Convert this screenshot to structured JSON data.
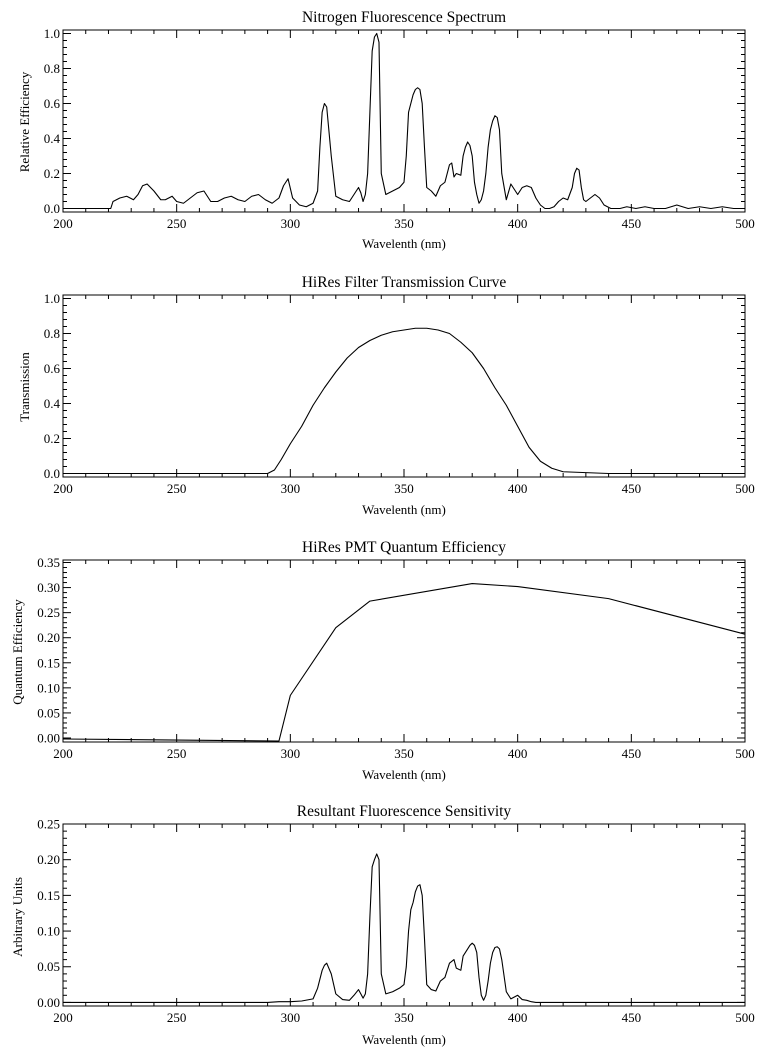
{
  "chart_data": [
    {
      "type": "line",
      "title": "Nitrogen Fluorescence Spectrum",
      "xlabel": "Wavelenth (nm)",
      "ylabel": "Relative Efficiency",
      "xlim": [
        200,
        500
      ],
      "ylim": [
        -0.02,
        1.02
      ],
      "xticks": [
        200,
        250,
        300,
        350,
        400,
        450,
        500
      ],
      "yticks": [
        0.0,
        0.2,
        0.4,
        0.6,
        0.8,
        1.0
      ],
      "ytick_labels": [
        "0.0",
        "0.2",
        "0.4",
        "0.6",
        "0.8",
        "1.0"
      ],
      "series": [
        {
          "x": [
            200,
            221,
            222,
            225,
            228,
            231,
            233,
            235,
            237,
            240,
            243,
            245,
            248,
            250,
            253,
            256,
            259,
            262,
            265,
            268,
            271,
            274,
            277,
            280,
            283,
            286,
            289,
            292,
            295,
            297,
            299,
            301,
            304,
            307,
            310,
            312,
            313,
            314,
            315,
            316,
            318,
            320,
            323,
            326,
            328,
            330,
            331,
            332,
            333,
            334,
            335,
            336,
            337,
            338,
            339,
            340,
            342,
            345,
            348,
            350,
            351,
            352,
            353,
            354,
            355,
            356,
            357,
            358,
            359,
            360,
            362,
            364,
            366,
            368,
            370,
            371,
            372,
            373,
            375,
            376,
            377,
            378,
            379,
            380,
            381,
            382,
            383,
            384,
            385,
            386,
            387,
            388,
            389,
            390,
            391,
            392,
            393,
            395,
            397,
            398,
            400,
            402,
            404,
            406,
            408,
            410,
            412,
            414,
            416,
            418,
            420,
            422,
            424,
            425,
            426,
            427,
            428,
            429,
            430,
            432,
            434,
            436,
            438,
            441,
            445,
            448,
            452,
            456,
            460,
            465,
            470,
            475,
            480,
            485,
            490,
            495,
            500
          ],
          "y": [
            0.0,
            0.0,
            0.04,
            0.06,
            0.07,
            0.05,
            0.08,
            0.13,
            0.14,
            0.1,
            0.05,
            0.05,
            0.07,
            0.04,
            0.03,
            0.06,
            0.09,
            0.1,
            0.04,
            0.04,
            0.06,
            0.07,
            0.05,
            0.04,
            0.07,
            0.08,
            0.05,
            0.03,
            0.06,
            0.13,
            0.17,
            0.06,
            0.02,
            0.01,
            0.03,
            0.1,
            0.35,
            0.55,
            0.6,
            0.58,
            0.3,
            0.07,
            0.05,
            0.04,
            0.08,
            0.12,
            0.09,
            0.04,
            0.08,
            0.2,
            0.55,
            0.9,
            0.98,
            1.0,
            0.95,
            0.2,
            0.08,
            0.1,
            0.12,
            0.15,
            0.3,
            0.55,
            0.6,
            0.65,
            0.68,
            0.69,
            0.68,
            0.6,
            0.35,
            0.12,
            0.1,
            0.07,
            0.13,
            0.15,
            0.25,
            0.26,
            0.18,
            0.2,
            0.19,
            0.3,
            0.35,
            0.38,
            0.36,
            0.3,
            0.15,
            0.08,
            0.03,
            0.05,
            0.1,
            0.2,
            0.35,
            0.45,
            0.5,
            0.53,
            0.52,
            0.45,
            0.2,
            0.05,
            0.14,
            0.12,
            0.08,
            0.12,
            0.13,
            0.12,
            0.06,
            0.02,
            0.0,
            0.0,
            0.01,
            0.04,
            0.06,
            0.05,
            0.12,
            0.2,
            0.23,
            0.22,
            0.12,
            0.05,
            0.04,
            0.06,
            0.08,
            0.06,
            0.02,
            0.0,
            0.0,
            0.01,
            0.0,
            0.01,
            0.0,
            0.0,
            0.02,
            0.0,
            0.01,
            0.0,
            0.01,
            0.0,
            0.0
          ]
        }
      ]
    },
    {
      "type": "line",
      "title": "HiRes Filter Transmission Curve",
      "xlabel": "Wavelenth (nm)",
      "ylabel": "Transmission",
      "xlim": [
        200,
        500
      ],
      "ylim": [
        -0.02,
        1.02
      ],
      "xticks": [
        200,
        250,
        300,
        350,
        400,
        450,
        500
      ],
      "yticks": [
        0.0,
        0.2,
        0.4,
        0.6,
        0.8,
        1.0
      ],
      "ytick_labels": [
        "0.0",
        "0.2",
        "0.4",
        "0.6",
        "0.8",
        "1.0"
      ],
      "series": [
        {
          "x": [
            200,
            250,
            290,
            293,
            296,
            300,
            305,
            310,
            315,
            320,
            325,
            330,
            335,
            340,
            345,
            350,
            355,
            360,
            365,
            370,
            375,
            380,
            385,
            390,
            393,
            395,
            400,
            405,
            410,
            415,
            420,
            430,
            440,
            450,
            500
          ],
          "y": [
            0.0,
            0.0,
            0.0,
            0.02,
            0.08,
            0.17,
            0.27,
            0.39,
            0.49,
            0.58,
            0.66,
            0.72,
            0.76,
            0.79,
            0.81,
            0.82,
            0.83,
            0.83,
            0.82,
            0.8,
            0.75,
            0.69,
            0.6,
            0.49,
            0.43,
            0.39,
            0.27,
            0.15,
            0.07,
            0.03,
            0.01,
            0.005,
            0.0,
            0.0,
            0.0
          ]
        }
      ]
    },
    {
      "type": "line",
      "title": "HiRes PMT Quantum Efficiency",
      "xlabel": "Wavelenth (nm)",
      "ylabel": "Quantum Efficiency",
      "xlim": [
        200,
        500
      ],
      "ylim": [
        -0.008,
        0.355
      ],
      "xticks": [
        200,
        250,
        300,
        350,
        400,
        450,
        500
      ],
      "yticks": [
        0.0,
        0.05,
        0.1,
        0.15,
        0.2,
        0.25,
        0.3,
        0.35
      ],
      "ytick_labels": [
        "0.00",
        "0.05",
        "0.10",
        "0.15",
        "0.20",
        "0.25",
        "0.30",
        "0.35"
      ],
      "series": [
        {
          "x": [
            200,
            295,
            300,
            320,
            335,
            380,
            400,
            440,
            500
          ],
          "y": [
            -0.002,
            -0.006,
            0.085,
            0.22,
            0.273,
            0.308,
            0.302,
            0.278,
            0.207
          ]
        }
      ]
    },
    {
      "type": "line",
      "title": "Resultant Fluorescence Sensitivity",
      "xlabel": "Wavelenth (nm)",
      "ylabel": "Arbitrary Units",
      "xlim": [
        200,
        500
      ],
      "ylim": [
        -0.005,
        0.25
      ],
      "xticks": [
        200,
        250,
        300,
        350,
        400,
        450,
        500
      ],
      "yticks": [
        0.0,
        0.05,
        0.1,
        0.15,
        0.2,
        0.25
      ],
      "ytick_labels": [
        "0.00",
        "0.05",
        "0.10",
        "0.15",
        "0.20",
        "0.25"
      ],
      "series": [
        {
          "x": [
            200,
            290,
            295,
            300,
            305,
            310,
            312,
            314,
            315,
            316,
            318,
            320,
            323,
            326,
            328,
            330,
            331,
            332,
            333,
            334,
            335,
            336,
            337,
            338,
            339,
            340,
            342,
            345,
            348,
            350,
            351,
            352,
            353,
            354,
            355,
            356,
            357,
            358,
            359,
            360,
            362,
            364,
            366,
            368,
            370,
            372,
            373,
            375,
            376,
            378,
            379,
            380,
            381,
            382,
            383,
            384,
            385,
            386,
            387,
            388,
            389,
            390,
            391,
            392,
            393,
            395,
            397,
            400,
            402,
            404,
            406,
            408,
            410,
            500
          ],
          "y": [
            0.0,
            0.0,
            0.001,
            0.001,
            0.002,
            0.005,
            0.02,
            0.045,
            0.052,
            0.055,
            0.04,
            0.012,
            0.004,
            0.003,
            0.01,
            0.018,
            0.012,
            0.006,
            0.012,
            0.04,
            0.12,
            0.19,
            0.2,
            0.208,
            0.2,
            0.04,
            0.012,
            0.015,
            0.02,
            0.025,
            0.05,
            0.1,
            0.13,
            0.14,
            0.155,
            0.163,
            0.165,
            0.15,
            0.09,
            0.025,
            0.018,
            0.016,
            0.03,
            0.035,
            0.055,
            0.06,
            0.048,
            0.045,
            0.065,
            0.075,
            0.08,
            0.083,
            0.08,
            0.07,
            0.035,
            0.01,
            0.003,
            0.01,
            0.03,
            0.055,
            0.07,
            0.077,
            0.078,
            0.075,
            0.06,
            0.015,
            0.005,
            0.01,
            0.004,
            0.003,
            0.001,
            0.0,
            0.0,
            0.0
          ]
        }
      ]
    }
  ]
}
